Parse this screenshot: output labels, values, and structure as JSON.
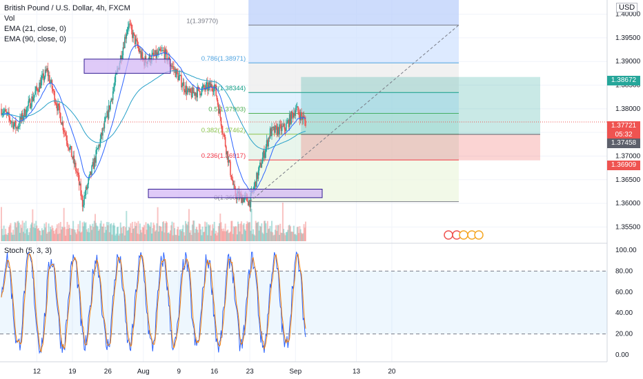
{
  "legend": {
    "symbol": "British Pound / U.S. Dollar, 4h, FXCM",
    "vol": "Vol",
    "ema21": "EMA (21, close, 0)",
    "ema90": "EMA (90, close, 0)",
    "stoch": "Stoch (5, 3, 3)"
  },
  "currency": "USD",
  "colors": {
    "up": "#26a69a",
    "down": "#ef5350",
    "ema21": "#2962ff",
    "ema90": "#26a0c8",
    "stoch_k": "#2962ff",
    "stoch_d": "#f57c00",
    "box": "#d1b3f5",
    "box_border": "#311b92"
  },
  "price_tags": [
    {
      "label": "1.38672",
      "bg": "#26a69a"
    },
    {
      "label": "1.37721",
      "bg": "#ef5350"
    },
    {
      "label": "05:32",
      "bg": "#ef5350"
    },
    {
      "label": "1.37458",
      "bg": "#5d606b"
    },
    {
      "label": "1.36909",
      "bg": "#ef5350"
    }
  ],
  "chart_data": [
    {
      "type": "candlestick",
      "title": "British Pound / U.S. Dollar, 4h, FXCM",
      "ylim": [
        1.352,
        1.403
      ],
      "y_ticks": [
        "1.40000",
        "1.39500",
        "1.39000",
        "1.38500",
        "1.38000",
        "1.37500",
        "1.37000",
        "1.36500",
        "1.36000",
        "1.35500"
      ],
      "x_ticks": [
        "12",
        "19",
        "26",
        "Aug",
        "9",
        "16",
        "23",
        "Sep",
        "13",
        "20"
      ],
      "key_points": [
        {
          "x": "Jul 5",
          "y": 1.38
        },
        {
          "x": "Jul 8",
          "y": 1.376
        },
        {
          "x": "Jul 14",
          "y": 1.388
        },
        {
          "x": "Jul 20",
          "y": 1.366
        },
        {
          "x": "Jul 21",
          "y": 1.36
        },
        {
          "x": "Jul 26",
          "y": 1.379
        },
        {
          "x": "Jul 30",
          "y": 1.398
        },
        {
          "x": "Aug 2",
          "y": 1.39
        },
        {
          "x": "Aug 6",
          "y": 1.392
        },
        {
          "x": "Aug 11",
          "y": 1.383
        },
        {
          "x": "Aug 16",
          "y": 1.385
        },
        {
          "x": "Aug 20",
          "y": 1.362
        },
        {
          "x": "Aug 23",
          "y": 1.3604
        },
        {
          "x": "Aug 27",
          "y": 1.375
        },
        {
          "x": "Aug 30",
          "y": 1.376
        },
        {
          "x": "Sep 1",
          "y": 1.38
        },
        {
          "x": "Sep 3",
          "y": 1.3772
        }
      ],
      "series": [
        {
          "name": "EMA (21, close, 0)"
        },
        {
          "name": "EMA (90, close, 0)"
        }
      ],
      "fibonacci": [
        {
          "label": "1(1.39770)",
          "value": 1.3977
        },
        {
          "label": "0.786(1.38971)",
          "value": 1.38971
        },
        {
          "label": "0.618(1.38344)",
          "value": 1.38344
        },
        {
          "label": "0.5(1.37903)",
          "value": 1.37903
        },
        {
          "label": "0.382(1.37462)",
          "value": 1.37462
        },
        {
          "label": "0.236(1.36917)",
          "value": 1.36917
        },
        {
          "label": "0(1.36036)",
          "value": 1.36036
        }
      ],
      "position": {
        "target": 1.38672,
        "entry": 1.37458,
        "stop": 1.36909
      },
      "last_price": 1.37721
    },
    {
      "type": "line",
      "title": "Stoch (5, 3, 3)",
      "ylim": [
        0,
        100
      ],
      "y_ticks": [
        "100.00",
        "80.00",
        "60.00",
        "40.00",
        "20.00",
        "0.00"
      ],
      "bands": [
        20,
        80
      ]
    }
  ]
}
